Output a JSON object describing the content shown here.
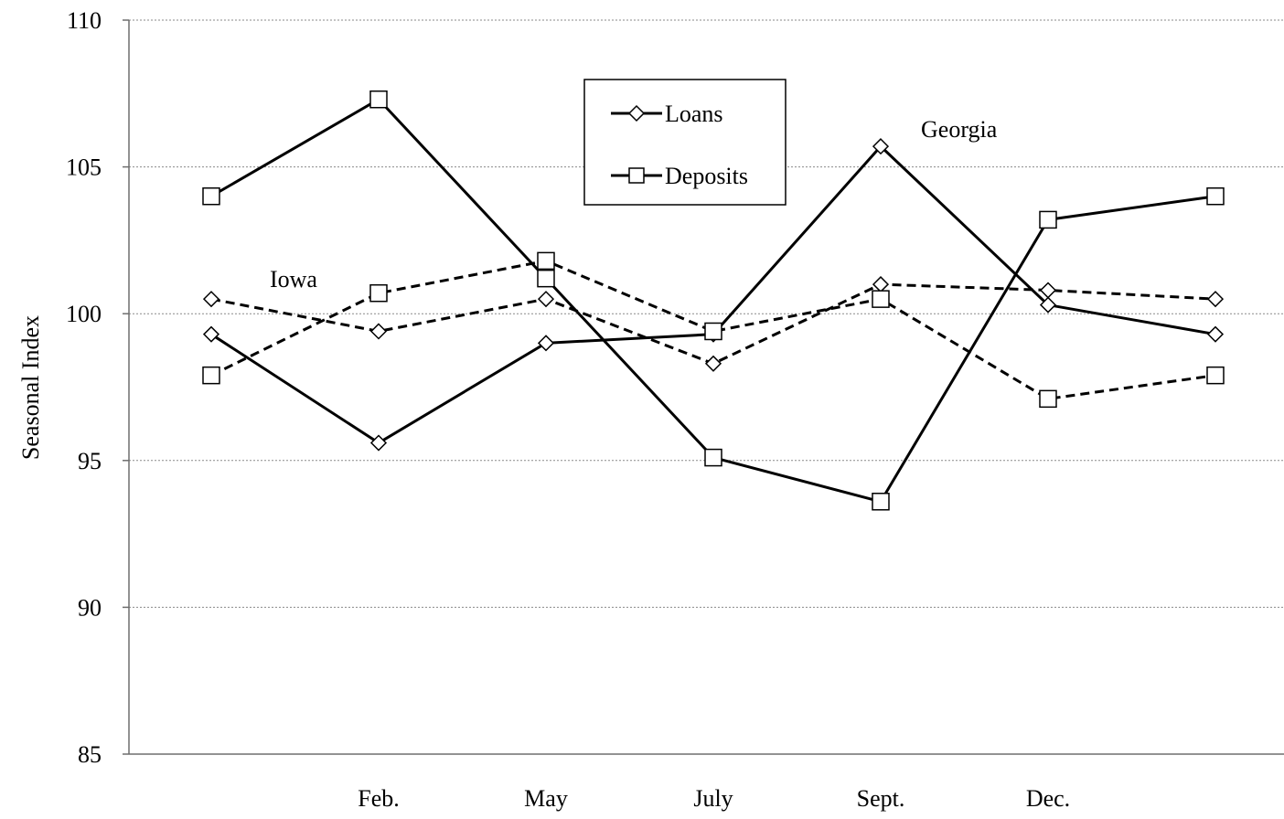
{
  "chart_data": {
    "type": "line",
    "title": "",
    "xlabel": "",
    "ylabel": "Seasonal Index",
    "ylim": [
      85,
      110
    ],
    "yticks": [
      85,
      90,
      95,
      100,
      105,
      110
    ],
    "x_tick_labels": [
      "",
      "Feb.",
      "May",
      "July",
      "Sept.",
      "Dec.",
      ""
    ],
    "grid": "horizontal dotted",
    "legend": {
      "placement": "top-center",
      "entries": [
        {
          "label": "Loans",
          "marker": "diamond"
        },
        {
          "label": "Deposits",
          "marker": "square"
        }
      ]
    },
    "annotations": [
      {
        "text": "Georgia"
      },
      {
        "text": "Iowa"
      }
    ],
    "series": [
      {
        "group": "Georgia",
        "kind": "Loans",
        "marker": "diamond",
        "style": "solid",
        "values": [
          99.3,
          95.6,
          99.0,
          99.3,
          105.7,
          100.3,
          99.3
        ]
      },
      {
        "group": "Georgia",
        "kind": "Deposits",
        "marker": "square",
        "style": "solid",
        "values": [
          104.0,
          107.3,
          101.2,
          95.1,
          93.6,
          103.2,
          104.0
        ]
      },
      {
        "group": "Iowa",
        "kind": "Loans",
        "marker": "diamond",
        "style": "dashed",
        "values": [
          100.5,
          99.4,
          100.5,
          98.3,
          101.0,
          100.8,
          100.5
        ]
      },
      {
        "group": "Iowa",
        "kind": "Deposits",
        "marker": "square",
        "style": "dashed",
        "values": [
          97.9,
          100.7,
          101.8,
          99.4,
          100.5,
          97.1,
          97.9
        ]
      }
    ]
  }
}
